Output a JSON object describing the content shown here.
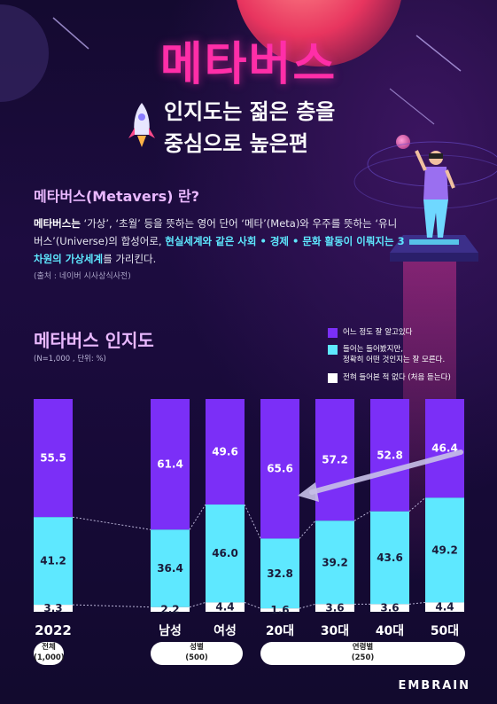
{
  "header": {
    "title": "메타버스",
    "subtitle_line1": "인지도는 젊은 층을",
    "subtitle_line2": "중심으로 높은편"
  },
  "definition": {
    "heading": "메타버스(Metavers) 란?",
    "p1": "메타버스는",
    "p2": " ‘가상’, ‘초월’ 등을 뜻하는 영어 단어 ‘메타’(Meta)와 우주를 뜻하는 ‘유니버스’(Universe)의 합성어로, ",
    "hl1": "현실세계와 같은 사회 • 경제 • 문화 활동이 이뤄지는 3차원의 가상세계",
    "p3": "를 가리킨다.",
    "hl2": "",
    "p4": "",
    "source": "(출처 : 네이버 시사상식사전)"
  },
  "chart_data": {
    "type": "bar",
    "stacked": true,
    "title": "메타버스 인지도",
    "note": "(N=1,000 , 단위: %)",
    "categories": [
      "2022",
      "남성",
      "여성",
      "20대",
      "30대",
      "40대",
      "50대"
    ],
    "series": [
      {
        "name": "어느 정도 잘 알고있다",
        "color": "#7b2ff7",
        "values": [
          55.5,
          61.4,
          49.6,
          65.6,
          57.2,
          52.8,
          46.4
        ]
      },
      {
        "name_line1": "들어는 들어봤지만,",
        "name_line2": "정확히 어떤 것인지는 잘 모른다.",
        "color": "#5ee8ff",
        "values": [
          41.2,
          36.4,
          46.0,
          32.8,
          39.2,
          43.6,
          49.2
        ]
      },
      {
        "name": "전혀 들어본 적 없다 (처음 듣는다)",
        "color": "#ffffff",
        "values": [
          3.3,
          2.2,
          4.4,
          1.6,
          3.6,
          3.6,
          4.4
        ]
      }
    ],
    "groups": [
      {
        "label": "전체",
        "n": "(1,000)"
      },
      {
        "label": "성별",
        "n": "(500)"
      },
      {
        "label": "연령별",
        "n": "(250)"
      }
    ],
    "ylim": [
      0,
      100
    ],
    "legend": "top-right"
  },
  "footer": {
    "brand": "EMBRAIN"
  }
}
